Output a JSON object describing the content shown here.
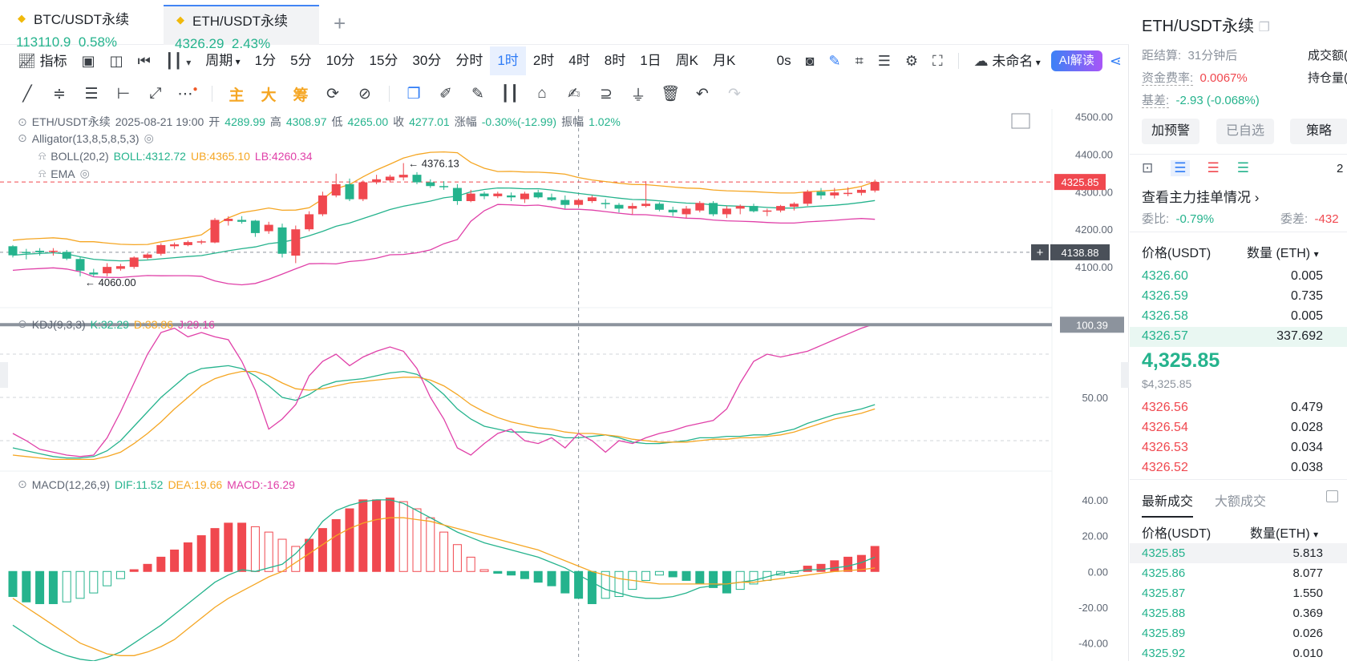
{
  "tabs": [
    {
      "name": "BTC/USDT永续",
      "price": "113110.9",
      "change": "0.58%"
    },
    {
      "name": "ETH/USDT永续",
      "price": "4326.29",
      "change": "2.43%"
    }
  ],
  "toolbar": {
    "indicators": "指标",
    "period": "周期",
    "intervals": [
      "1分",
      "5分",
      "10分",
      "15分",
      "30分",
      "分时",
      "1时",
      "2时",
      "4时",
      "8时",
      "1日",
      "周K",
      "月K"
    ],
    "selected_interval": "1时",
    "countdown": "0s",
    "layout_name": "未命名",
    "ai_label": "AI解读"
  },
  "drawing_tools": {
    "main": "主",
    "big": "大",
    "chip": "筹"
  },
  "legend": {
    "symbol": "ETH/USDT永续",
    "datetime": "2025-08-21 19:00",
    "open_label": "开",
    "open": "4289.99",
    "high_label": "高",
    "high": "4308.97",
    "low_label": "低",
    "low": "4265.00",
    "close_label": "收",
    "close": "4277.01",
    "change_label": "涨幅",
    "change": "-0.30%(-12.99)",
    "amp_label": "振幅",
    "amp": "1.02%",
    "alligator": "Alligator(13,8,5,8,5,3)",
    "boll_name": "BOLL(20,2)",
    "boll": "BOLL:4312.72",
    "ub": "UB:4365.10",
    "lb": "LB:4260.34",
    "ema": "EMA",
    "kdj_name": "KDJ(9,3,3)",
    "k": "K:32.29",
    "d": "D:33.86",
    "j": "J:29.16",
    "macd_name": "MACD(12,26,9)",
    "dif": "DIF:11.52",
    "dea": "DEA:19.66",
    "macd": "MACD:-16.29"
  },
  "price_axis": {
    "ticks": [
      "4500.00",
      "4400.00",
      "4300.00",
      "4200.00",
      "4100.00"
    ],
    "last_price": "4325.85",
    "crosshair_price": "4138.88",
    "high_marker": "4376.13",
    "low_marker": "4060.00"
  },
  "kdj_axis": {
    "ticks": [
      "50.00"
    ],
    "crosshair_value": "100.39"
  },
  "macd_axis": {
    "ticks": [
      "40.00",
      "20.00",
      "0.00",
      "-20.00",
      "-40.00"
    ]
  },
  "chart_data": [
    {
      "type": "candlestick",
      "panel": "price",
      "ylim": [
        4030,
        4520
      ],
      "ohlc": [
        [
          4155,
          4158,
          4125,
          4131
        ],
        [
          4140,
          4148,
          4120,
          4137
        ],
        [
          4143,
          4150,
          4130,
          4139
        ],
        [
          4141,
          4150,
          4130,
          4143
        ],
        [
          4140,
          4145,
          4118,
          4122
        ],
        [
          4121,
          4128,
          4075,
          4090
        ],
        [
          4085,
          4095,
          4075,
          4080
        ],
        [
          4083,
          4110,
          4075,
          4100
        ],
        [
          4095,
          4108,
          4090,
          4102
        ],
        [
          4100,
          4128,
          4095,
          4125
        ],
        [
          4124,
          4137,
          4120,
          4133
        ],
        [
          4135,
          4163,
          4130,
          4158
        ],
        [
          4155,
          4165,
          4148,
          4160
        ],
        [
          4158,
          4170,
          4155,
          4166
        ],
        [
          4165,
          4172,
          4160,
          4168
        ],
        [
          4165,
          4230,
          4163,
          4225
        ],
        [
          4222,
          4235,
          4210,
          4228
        ],
        [
          4225,
          4235,
          4215,
          4220
        ],
        [
          4223,
          4225,
          4180,
          4190
        ],
        [
          4195,
          4220,
          4188,
          4212
        ],
        [
          4205,
          4215,
          4125,
          4135
        ],
        [
          4130,
          4210,
          4110,
          4200
        ],
        [
          4200,
          4248,
          4195,
          4240
        ],
        [
          4240,
          4300,
          4235,
          4290
        ],
        [
          4290,
          4348,
          4285,
          4320
        ],
        [
          4320,
          4335,
          4275,
          4280
        ],
        [
          4280,
          4330,
          4275,
          4325
        ],
        [
          4325,
          4345,
          4320,
          4333
        ],
        [
          4330,
          4345,
          4325,
          4340
        ],
        [
          4338,
          4376,
          4330,
          4345
        ],
        [
          4345,
          4352,
          4320,
          4325
        ],
        [
          4325,
          4333,
          4310,
          4315
        ],
        [
          4315,
          4328,
          4305,
          4312
        ],
        [
          4310,
          4320,
          4265,
          4275
        ],
        [
          4275,
          4305,
          4272,
          4295
        ],
        [
          4295,
          4300,
          4280,
          4288
        ],
        [
          4288,
          4300,
          4283,
          4295
        ],
        [
          4290,
          4298,
          4275,
          4285
        ],
        [
          4280,
          4300,
          4270,
          4295
        ],
        [
          4298,
          4305,
          4282,
          4285
        ],
        [
          4285,
          4295,
          4275,
          4278
        ],
        [
          4278,
          4290,
          4255,
          4265
        ],
        [
          4265,
          4282,
          4260,
          4278
        ],
        [
          4275,
          4290,
          4270,
          4285
        ],
        [
          4270,
          4280,
          4255,
          4268
        ],
        [
          4265,
          4270,
          4245,
          4255
        ],
        [
          4255,
          4270,
          4240,
          4262
        ],
        [
          4262,
          4328,
          4258,
          4268
        ],
        [
          4268,
          4272,
          4248,
          4252
        ],
        [
          4252,
          4260,
          4235,
          4245
        ],
        [
          4240,
          4262,
          4230,
          4255
        ],
        [
          4250,
          4275,
          4245,
          4270
        ],
        [
          4270,
          4275,
          4235,
          4240
        ],
        [
          4240,
          4262,
          4230,
          4255
        ],
        [
          4255,
          4266,
          4240,
          4262
        ],
        [
          4262,
          4268,
          4245,
          4248
        ],
        [
          4248,
          4255,
          4235,
          4250
        ],
        [
          4250,
          4265,
          4245,
          4262
        ],
        [
          4260,
          4272,
          4250,
          4268
        ],
        [
          4268,
          4305,
          4262,
          4300
        ],
        [
          4300,
          4310,
          4280,
          4290
        ],
        [
          4290,
          4310,
          4282,
          4298
        ],
        [
          4295,
          4312,
          4288,
          4297
        ],
        [
          4297,
          4312,
          4290,
          4305
        ],
        [
          4303,
          4332,
          4298,
          4326
        ]
      ]
    },
    {
      "type": "line",
      "panel": "kdj",
      "ylim": [
        0,
        100
      ],
      "series": [
        {
          "name": "K",
          "values": [
            15,
            13,
            11,
            9,
            8,
            8,
            9,
            13,
            20,
            30,
            40,
            50,
            58,
            66,
            70,
            71,
            72,
            70,
            65,
            58,
            50,
            48,
            52,
            58,
            61,
            62,
            63,
            65,
            67,
            68,
            66,
            60,
            52,
            42,
            35,
            30,
            28,
            26,
            26,
            25,
            24,
            22,
            22,
            23,
            24,
            22,
            19,
            18,
            18,
            19,
            20,
            22,
            22,
            23,
            23,
            24,
            24,
            26,
            28,
            32,
            35,
            38,
            40,
            42,
            45
          ]
        },
        {
          "name": "D",
          "values": [
            10,
            9,
            8,
            7,
            7,
            7,
            7,
            9,
            12,
            18,
            25,
            33,
            42,
            50,
            58,
            63,
            66,
            68,
            68,
            65,
            60,
            56,
            55,
            56,
            58,
            60,
            61,
            62,
            63,
            64,
            64,
            62,
            58,
            52,
            45,
            40,
            36,
            33,
            31,
            29,
            28,
            26,
            25,
            25,
            24,
            23,
            21,
            20,
            19,
            19,
            19,
            20,
            21,
            21,
            22,
            22,
            23,
            24,
            26,
            29,
            32,
            35,
            37,
            39,
            42
          ]
        },
        {
          "name": "J",
          "values": [
            25,
            20,
            14,
            12,
            10,
            9,
            10,
            22,
            40,
            60,
            80,
            95,
            98,
            92,
            95,
            92,
            90,
            75,
            55,
            28,
            35,
            45,
            65,
            75,
            80,
            72,
            78,
            82,
            85,
            82,
            70,
            50,
            35,
            15,
            10,
            18,
            25,
            28,
            20,
            18,
            22,
            15,
            25,
            20,
            12,
            20,
            18,
            22,
            25,
            27,
            30,
            32,
            34,
            42,
            60,
            75,
            80,
            78,
            80,
            82,
            86,
            90,
            94,
            98,
            101
          ]
        }
      ]
    },
    {
      "type": "bar+line",
      "panel": "macd",
      "ylim": [
        -50,
        48
      ],
      "histogram": [
        -14,
        -17,
        -18,
        -18,
        -17,
        -15,
        -12,
        -8,
        -4,
        1,
        4,
        8,
        12,
        16,
        20,
        24,
        27,
        27,
        25,
        22,
        18,
        14,
        18,
        24,
        29,
        35,
        40,
        40,
        41,
        39,
        35,
        30,
        22,
        15,
        8,
        1,
        -1,
        -2,
        -4,
        -6,
        -8,
        -12,
        -15,
        -18,
        -15,
        -14,
        -10,
        -5,
        -2,
        -3,
        -5,
        -7,
        -9,
        -12,
        -10,
        -7,
        -5,
        -2,
        -1,
        3,
        4,
        6,
        8,
        9,
        14
      ],
      "series": [
        {
          "name": "DIF",
          "values": [
            -30,
            -35,
            -40,
            -44,
            -47,
            -49,
            -50,
            -48,
            -45,
            -40,
            -35,
            -30,
            -24,
            -18,
            -12,
            -6,
            -2,
            1,
            0,
            2,
            4,
            10,
            18,
            28,
            34,
            37,
            39,
            40,
            40,
            38,
            34,
            30,
            26,
            22,
            19,
            16,
            14,
            12,
            10,
            8,
            5,
            2,
            -2,
            -6,
            -10,
            -12,
            -14,
            -15,
            -15,
            -14,
            -12,
            -9,
            -8,
            -7,
            -6,
            -5,
            -3,
            -1,
            0,
            1,
            1,
            2,
            3,
            5,
            8
          ]
        },
        {
          "name": "DEA",
          "values": [
            -15,
            -20,
            -25,
            -30,
            -35,
            -40,
            -43,
            -46,
            -47,
            -47,
            -45,
            -42,
            -38,
            -32,
            -26,
            -20,
            -15,
            -11,
            -7,
            -3,
            0,
            5,
            10,
            15,
            20,
            24,
            27,
            29,
            30,
            30,
            29,
            28,
            26,
            24,
            22,
            20,
            18,
            16,
            14,
            12,
            9,
            6,
            3,
            0,
            -2,
            -4,
            -5,
            -6,
            -7,
            -7,
            -7,
            -7,
            -7,
            -7,
            -6,
            -6,
            -5,
            -4,
            -3,
            -2,
            -1,
            0,
            0.5,
            1,
            2
          ]
        }
      ]
    }
  ],
  "right_panel": {
    "title": "ETH/USDT永续",
    "settlement_label": "距结算:",
    "settlement_value": "31分钟后",
    "funding_label": "资金费率:",
    "funding_value": "0.0067%",
    "basis_label": "基差:",
    "basis_value": "-2.93 (-0.068%)",
    "volume_label": "成交额(",
    "oi_label": "持仓量(",
    "btn_alert": "加预警",
    "btn_fav": "已自选",
    "btn_strategy": "策略",
    "depth_num": "2",
    "main_orders": "查看主力挂单情况",
    "ratio_label": "委比:",
    "ratio_value": "-0.79%",
    "diff_label": "委差:",
    "diff_value": "-432",
    "ob_price_header": "价格(USDT)",
    "ob_qty_header": "数量 (ETH)",
    "bids_top": [
      {
        "price": "4326.60",
        "qty": "0.005"
      },
      {
        "price": "4326.59",
        "qty": "0.735"
      },
      {
        "price": "4326.58",
        "qty": "0.005"
      },
      {
        "price": "4326.57",
        "qty": "337.692"
      }
    ],
    "mid_price": "4,325.85",
    "mid_sub": "$4,325.85",
    "asks_bottom": [
      {
        "price": "4326.56",
        "qty": "0.479"
      },
      {
        "price": "4326.54",
        "qty": "0.028"
      },
      {
        "price": "4326.53",
        "qty": "0.034"
      },
      {
        "price": "4326.52",
        "qty": "0.038"
      }
    ],
    "trades_tab1": "最新成交",
    "trades_tab2": "大额成交",
    "tr_price_header": "价格(USDT)",
    "tr_qty_header": "数量(ETH)",
    "trades": [
      {
        "price": "4325.85",
        "qty": "5.813"
      },
      {
        "price": "4325.86",
        "qty": "8.077"
      },
      {
        "price": "4325.87",
        "qty": "1.550"
      },
      {
        "price": "4325.88",
        "qty": "0.369"
      },
      {
        "price": "4325.89",
        "qty": "0.026"
      },
      {
        "price": "4325.92",
        "qty": "0.010"
      }
    ]
  }
}
